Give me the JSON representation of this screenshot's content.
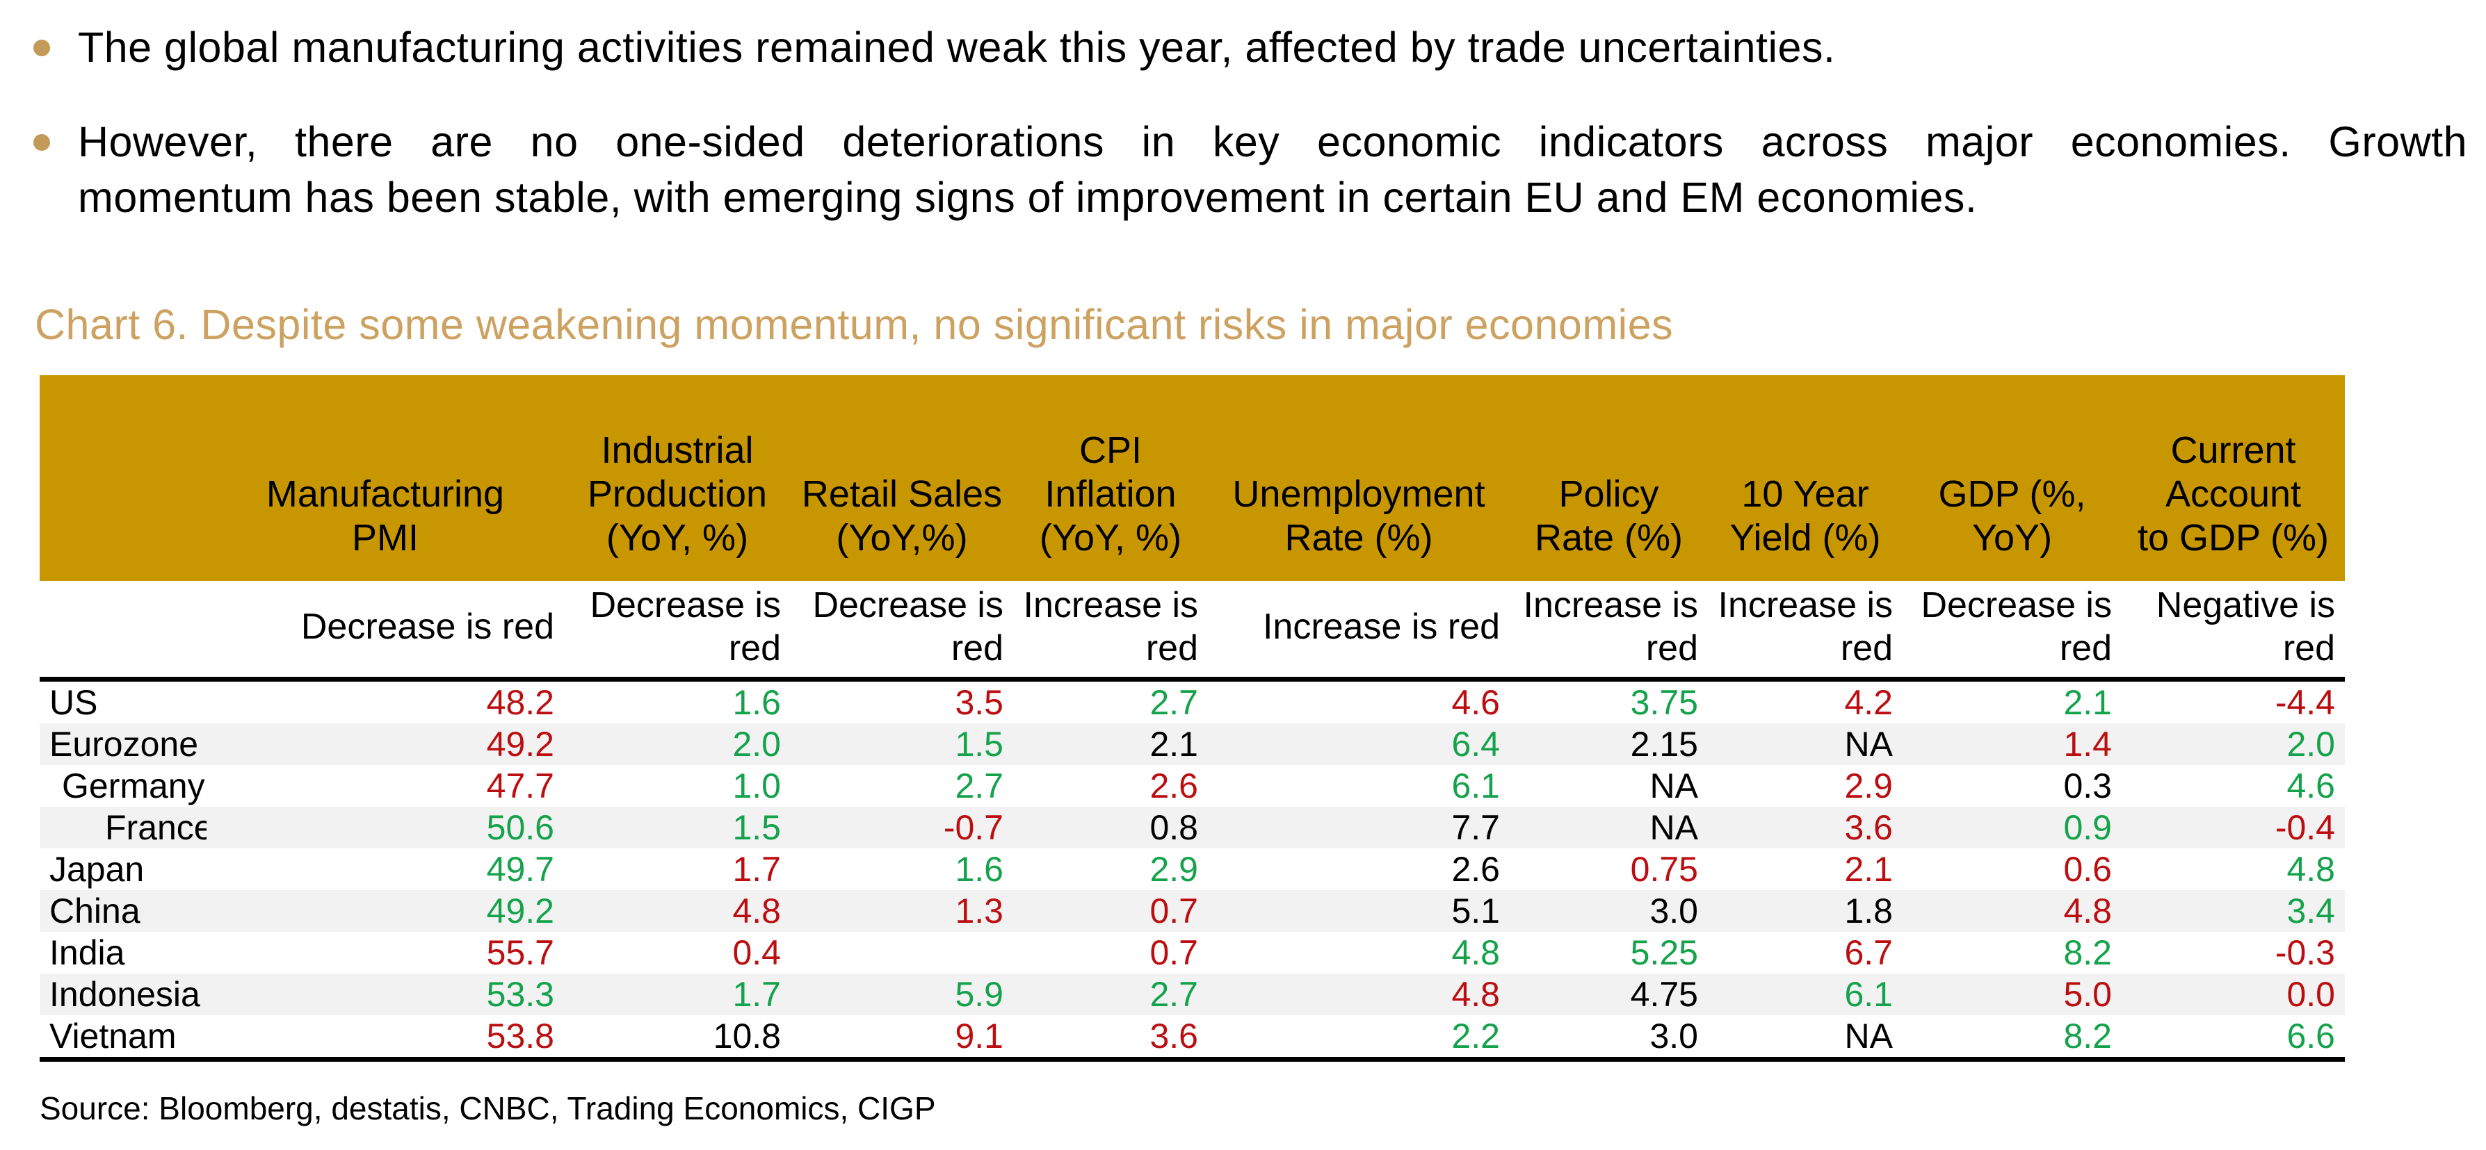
{
  "colors": {
    "header_gold": "#C89700",
    "title_tan": "#CDA15F",
    "bullet_dot_tan": "#C49A58",
    "negative_red": "#BC0E10",
    "positive_green": "#14A24B",
    "neutral_black": "#000000",
    "row_alt_gray": "#F2F2F2"
  },
  "color_map": {
    "r": "#BC0E10",
    "g": "#14A24B",
    "k": "#000000"
  },
  "bullets": [
    {
      "lines": [
        "The global manufacturing activities remained weak this year, affected by trade uncertainties."
      ]
    },
    {
      "lines": [
        "However, there are no one-sided deteriorations in key economic indicators across major economies. Growth",
        "momentum has been stable, with emerging signs of improvement in certain EU and EM economies."
      ]
    }
  ],
  "chart_title": "Chart 6. Despite some weakening momentum, no significant risks in major economies",
  "table": {
    "columns": [
      {
        "lines": [
          "Manufacturing",
          "PMI"
        ],
        "note_lines": [
          "Decrease is red"
        ]
      },
      {
        "lines": [
          "Industrial",
          "Production",
          "(YoY, %)"
        ],
        "note_lines": [
          "Decrease is",
          "red"
        ]
      },
      {
        "lines": [
          "Retail Sales",
          "(YoY,%)"
        ],
        "note_lines": [
          "Decrease is",
          "red"
        ]
      },
      {
        "lines": [
          "CPI",
          "Inflation",
          "(YoY, %)"
        ],
        "note_lines": [
          "Increase is",
          "red"
        ]
      },
      {
        "lines": [
          "Unemployment",
          "Rate (%)"
        ],
        "note_lines": [
          "Increase is red"
        ]
      },
      {
        "lines": [
          "Policy",
          "Rate (%)"
        ],
        "note_lines": [
          "Increase is",
          "red"
        ]
      },
      {
        "lines": [
          "10 Year",
          "Yield (%)"
        ],
        "note_lines": [
          "Increase is",
          "red"
        ]
      },
      {
        "lines": [
          "GDP (%,",
          "YoY)"
        ],
        "note_lines": [
          "Decrease is",
          "red"
        ]
      },
      {
        "lines": [
          "Current",
          "Account",
          "to GDP (%)"
        ],
        "note_lines": [
          "Negative is",
          "red"
        ]
      }
    ],
    "rows": [
      {
        "country": "US",
        "indent": 0,
        "values": [
          "48.2",
          "1.6",
          "3.5",
          "2.7",
          "4.6",
          "3.75",
          "4.2",
          "2.1",
          "-4.4"
        ],
        "colors": [
          "r",
          "g",
          "r",
          "g",
          "r",
          "g",
          "r",
          "g",
          "r"
        ]
      },
      {
        "country": "Eurozone",
        "indent": 0,
        "values": [
          "49.2",
          "2.0",
          "1.5",
          "2.1",
          "6.4",
          "2.15",
          "NA",
          "1.4",
          "2.0"
        ],
        "colors": [
          "r",
          "g",
          "g",
          "k",
          "g",
          "k",
          "k",
          "r",
          "g"
        ]
      },
      {
        "country": "Germany",
        "indent": 1,
        "values": [
          "47.7",
          "1.0",
          "2.7",
          "2.6",
          "6.1",
          "NA",
          "2.9",
          "0.3",
          "4.6"
        ],
        "colors": [
          "r",
          "g",
          "g",
          "r",
          "g",
          "k",
          "r",
          "k",
          "g"
        ]
      },
      {
        "country": "France",
        "indent": 2,
        "values": [
          "50.6",
          "1.5",
          "-0.7",
          "0.8",
          "7.7",
          "NA",
          "3.6",
          "0.9",
          "-0.4"
        ],
        "colors": [
          "g",
          "g",
          "r",
          "k",
          "k",
          "k",
          "r",
          "g",
          "r"
        ]
      },
      {
        "country": "Japan",
        "indent": 0,
        "values": [
          "49.7",
          "1.7",
          "1.6",
          "2.9",
          "2.6",
          "0.75",
          "2.1",
          "0.6",
          "4.8"
        ],
        "colors": [
          "g",
          "r",
          "g",
          "g",
          "k",
          "r",
          "r",
          "r",
          "g"
        ]
      },
      {
        "country": "China",
        "indent": 0,
        "values": [
          "49.2",
          "4.8",
          "1.3",
          "0.7",
          "5.1",
          "3.0",
          "1.8",
          "4.8",
          "3.4"
        ],
        "colors": [
          "g",
          "r",
          "r",
          "r",
          "k",
          "k",
          "k",
          "r",
          "g"
        ]
      },
      {
        "country": "India",
        "indent": 0,
        "values": [
          "55.7",
          "0.4",
          "",
          "0.7",
          "4.8",
          "5.25",
          "6.7",
          "8.2",
          "-0.3"
        ],
        "colors": [
          "r",
          "r",
          "",
          "r",
          "g",
          "g",
          "r",
          "g",
          "r"
        ]
      },
      {
        "country": "Indonesia",
        "indent": 0,
        "values": [
          "53.3",
          "1.7",
          "5.9",
          "2.7",
          "4.8",
          "4.75",
          "6.1",
          "5.0",
          "0.0"
        ],
        "colors": [
          "g",
          "g",
          "g",
          "g",
          "r",
          "k",
          "g",
          "r",
          "r"
        ]
      },
      {
        "country": "Vietnam",
        "indent": 0,
        "values": [
          "53.8",
          "10.8",
          "9.1",
          "3.6",
          "2.2",
          "3.0",
          "NA",
          "8.2",
          "6.6"
        ],
        "colors": [
          "r",
          "k",
          "r",
          "r",
          "g",
          "k",
          "k",
          "g",
          "g"
        ]
      }
    ]
  },
  "source": "Source: Bloomberg, destatis, CNBC, Trading Economics, CIGP"
}
